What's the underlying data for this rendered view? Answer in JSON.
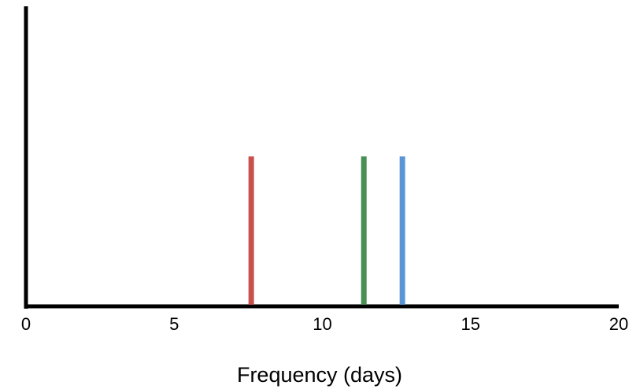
{
  "chart_data": {
    "type": "line",
    "title": "",
    "xlabel": "Frequency (days)",
    "ylabel": "",
    "xlim": [
      0,
      20
    ],
    "ylim": [
      0,
      1
    ],
    "x_ticks": [
      0,
      5,
      10,
      15,
      20
    ],
    "x_tick_labels": [
      "0",
      "5",
      "10",
      "15",
      "20"
    ],
    "grid": false,
    "legend": "none",
    "series": [
      {
        "color": "#c9504b",
        "x": 7.6,
        "y": 0.5
      },
      {
        "color": "#4a8f55",
        "x": 11.4,
        "y": 0.5
      },
      {
        "color": "#5b95d5",
        "x": 12.7,
        "y": 0.5
      }
    ]
  }
}
